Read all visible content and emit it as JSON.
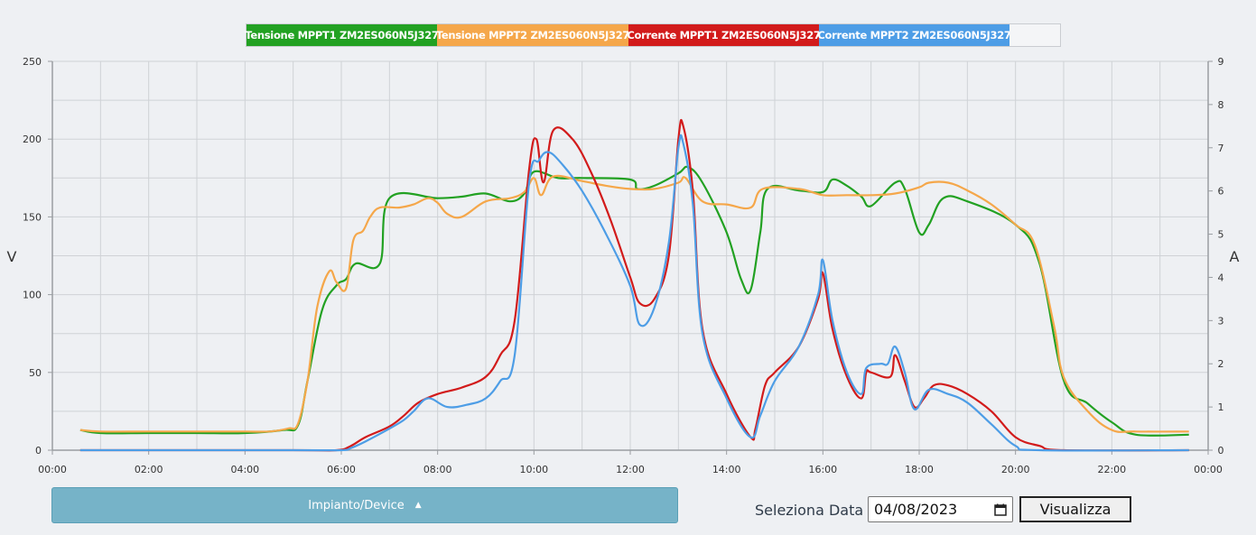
{
  "chart_data": {
    "type": "line",
    "x_ticks": [
      "00:00",
      "02:00",
      "04:00",
      "06:00",
      "08:00",
      "10:00",
      "12:00",
      "14:00",
      "16:00",
      "18:00",
      "20:00",
      "22:00",
      "00:00"
    ],
    "y_left": {
      "label": "V",
      "min": 0,
      "max": 250,
      "ticks": [
        0,
        50,
        100,
        150,
        200,
        250
      ]
    },
    "y_right": {
      "label": "A",
      "min": 0,
      "max": 9,
      "ticks": [
        0,
        1,
        2,
        3,
        4,
        5,
        6,
        7,
        8,
        9
      ]
    },
    "grid": true,
    "legend_position": "top-center",
    "series": [
      {
        "name": "Tensione MPPT1 ZM2ES060N5J327",
        "axis": "left",
        "color": "#22a122",
        "points": [
          [
            0.58,
            13
          ],
          [
            1,
            11
          ],
          [
            2,
            11
          ],
          [
            3,
            11
          ],
          [
            4,
            11
          ],
          [
            4.8,
            13
          ],
          [
            5.1,
            16
          ],
          [
            5.3,
            45
          ],
          [
            5.6,
            90
          ],
          [
            5.9,
            106
          ],
          [
            6.1,
            110
          ],
          [
            6.3,
            120
          ],
          [
            6.8,
            120
          ],
          [
            7,
            162
          ],
          [
            8,
            162
          ],
          [
            8.5,
            163
          ],
          [
            9,
            165
          ],
          [
            9.5,
            160
          ],
          [
            9.8,
            165
          ],
          [
            10,
            179
          ],
          [
            10.5,
            175
          ],
          [
            11,
            175
          ],
          [
            12,
            174
          ],
          [
            12.15,
            168
          ],
          [
            12.5,
            170
          ],
          [
            13,
            178
          ],
          [
            13.2,
            182
          ],
          [
            13.5,
            172
          ],
          [
            14,
            140
          ],
          [
            14.3,
            110
          ],
          [
            14.5,
            103
          ],
          [
            14.7,
            140
          ],
          [
            14.85,
            168
          ],
          [
            15.5,
            167
          ],
          [
            16,
            166
          ],
          [
            16.2,
            174
          ],
          [
            16.5,
            170
          ],
          [
            16.8,
            163
          ],
          [
            17,
            157
          ],
          [
            17.5,
            172
          ],
          [
            17.7,
            168
          ],
          [
            18,
            140
          ],
          [
            18.2,
            145
          ],
          [
            18.5,
            162
          ],
          [
            19,
            160
          ],
          [
            20,
            145
          ],
          [
            20.5,
            120
          ],
          [
            21,
            45
          ],
          [
            21.5,
            30
          ],
          [
            22,
            18
          ],
          [
            22.5,
            10
          ],
          [
            23.6,
            10
          ]
        ]
      },
      {
        "name": "Tensione MPPT2 ZM2ES060N5J327",
        "axis": "left",
        "color": "#f5a74a",
        "points": [
          [
            0.58,
            13
          ],
          [
            1,
            12
          ],
          [
            2,
            12
          ],
          [
            3,
            12
          ],
          [
            4,
            12
          ],
          [
            4.5,
            12
          ],
          [
            4.9,
            14
          ],
          [
            5.1,
            17
          ],
          [
            5.3,
            45
          ],
          [
            5.5,
            92
          ],
          [
            5.75,
            115
          ],
          [
            5.9,
            108
          ],
          [
            6.1,
            104
          ],
          [
            6.25,
            135
          ],
          [
            6.45,
            141
          ],
          [
            6.6,
            150
          ],
          [
            6.8,
            156
          ],
          [
            7.2,
            156
          ],
          [
            7.5,
            158
          ],
          [
            7.8,
            162
          ],
          [
            8,
            159
          ],
          [
            8.2,
            152
          ],
          [
            8.5,
            150
          ],
          [
            9,
            160
          ],
          [
            9.5,
            162
          ],
          [
            9.8,
            166
          ],
          [
            10,
            175
          ],
          [
            10.15,
            164
          ],
          [
            10.4,
            176
          ],
          [
            11,
            173
          ],
          [
            11.5,
            170
          ],
          [
            12,
            168
          ],
          [
            12.5,
            168
          ],
          [
            13,
            172
          ],
          [
            13.15,
            175
          ],
          [
            13.5,
            160
          ],
          [
            14,
            158
          ],
          [
            14.5,
            156
          ],
          [
            14.75,
            168
          ],
          [
            15.5,
            168
          ],
          [
            16,
            164
          ],
          [
            16.5,
            164
          ],
          [
            17,
            164
          ],
          [
            17.5,
            165
          ],
          [
            18,
            169
          ],
          [
            18.2,
            172
          ],
          [
            18.6,
            172
          ],
          [
            19,
            167
          ],
          [
            19.5,
            158
          ],
          [
            20,
            145
          ],
          [
            20.4,
            132
          ],
          [
            20.8,
            80
          ],
          [
            21,
            47
          ],
          [
            21.5,
            25
          ],
          [
            22,
            13
          ],
          [
            22.5,
            12
          ],
          [
            23.6,
            12
          ]
        ]
      },
      {
        "name": "Corrente MPPT1 ZM2ES060N5J327",
        "axis": "right",
        "color": "#d21b1b",
        "points": [
          [
            0.58,
            0
          ],
          [
            5,
            0
          ],
          [
            5.9,
            0
          ],
          [
            6.2,
            0.1
          ],
          [
            6.5,
            0.3
          ],
          [
            7,
            0.55
          ],
          [
            7.3,
            0.8
          ],
          [
            7.6,
            1.1
          ],
          [
            8,
            1.3
          ],
          [
            8.5,
            1.45
          ],
          [
            9,
            1.7
          ],
          [
            9.3,
            2.2
          ],
          [
            9.6,
            3
          ],
          [
            9.9,
            6.5
          ],
          [
            10.05,
            7.2
          ],
          [
            10.2,
            6.2
          ],
          [
            10.4,
            7.4
          ],
          [
            10.8,
            7.2
          ],
          [
            11.2,
            6.4
          ],
          [
            11.6,
            5.3
          ],
          [
            12,
            4
          ],
          [
            12.2,
            3.4
          ],
          [
            12.5,
            3.5
          ],
          [
            12.8,
            4.5
          ],
          [
            13,
            7.2
          ],
          [
            13.1,
            7.5
          ],
          [
            13.3,
            6
          ],
          [
            13.5,
            2.8
          ],
          [
            14,
            1.3
          ],
          [
            14.5,
            0.3
          ],
          [
            14.6,
            0.5
          ],
          [
            14.8,
            1.5
          ],
          [
            15,
            1.8
          ],
          [
            15.5,
            2.4
          ],
          [
            15.9,
            3.5
          ],
          [
            16,
            4.1
          ],
          [
            16.2,
            2.8
          ],
          [
            16.5,
            1.7
          ],
          [
            16.8,
            1.2
          ],
          [
            16.9,
            1.8
          ],
          [
            17,
            1.8
          ],
          [
            17.4,
            1.7
          ],
          [
            17.5,
            2.2
          ],
          [
            17.7,
            1.6
          ],
          [
            17.9,
            1.0
          ],
          [
            18.1,
            1.2
          ],
          [
            18.3,
            1.5
          ],
          [
            18.6,
            1.5
          ],
          [
            19,
            1.3
          ],
          [
            19.5,
            0.9
          ],
          [
            20,
            0.3
          ],
          [
            20.5,
            0.1
          ],
          [
            21,
            0
          ],
          [
            23.6,
            0
          ]
        ]
      },
      {
        "name": "Corrente MPPT2 ZM2ES060N5J327",
        "axis": "right",
        "color": "#4d9de6",
        "points": [
          [
            0.58,
            0
          ],
          [
            5,
            0
          ],
          [
            6,
            0
          ],
          [
            6.2,
            0.05
          ],
          [
            6.5,
            0.2
          ],
          [
            7,
            0.5
          ],
          [
            7.3,
            0.7
          ],
          [
            7.5,
            0.9
          ],
          [
            7.8,
            1.2
          ],
          [
            8.2,
            1.0
          ],
          [
            8.6,
            1.05
          ],
          [
            9,
            1.2
          ],
          [
            9.3,
            1.6
          ],
          [
            9.6,
            2.2
          ],
          [
            9.9,
            6.2
          ],
          [
            10.1,
            6.7
          ],
          [
            10.3,
            6.9
          ],
          [
            10.6,
            6.6
          ],
          [
            11,
            6
          ],
          [
            11.5,
            5
          ],
          [
            12,
            3.8
          ],
          [
            12.2,
            2.9
          ],
          [
            12.5,
            3.3
          ],
          [
            12.8,
            4.8
          ],
          [
            13,
            7.0
          ],
          [
            13.1,
            7.1
          ],
          [
            13.3,
            5.7
          ],
          [
            13.5,
            2.7
          ],
          [
            14,
            1.2
          ],
          [
            14.5,
            0.3
          ],
          [
            14.7,
            0.8
          ],
          [
            15,
            1.6
          ],
          [
            15.5,
            2.4
          ],
          [
            15.9,
            3.6
          ],
          [
            16,
            4.4
          ],
          [
            16.2,
            3.0
          ],
          [
            16.5,
            1.8
          ],
          [
            16.8,
            1.3
          ],
          [
            16.9,
            1.9
          ],
          [
            17.2,
            2.0
          ],
          [
            17.35,
            2.0
          ],
          [
            17.5,
            2.4
          ],
          [
            17.7,
            1.8
          ],
          [
            17.9,
            0.95
          ],
          [
            18.2,
            1.4
          ],
          [
            18.6,
            1.3
          ],
          [
            19,
            1.1
          ],
          [
            19.5,
            0.6
          ],
          [
            20,
            0.1
          ],
          [
            20.5,
            0
          ],
          [
            23.6,
            0
          ]
        ]
      }
    ]
  },
  "controls": {
    "device_button_label": "Impianto/Device",
    "date_label": "Seleziona Data",
    "date_value": "04/08/2023",
    "submit_label": "Visualizza"
  }
}
